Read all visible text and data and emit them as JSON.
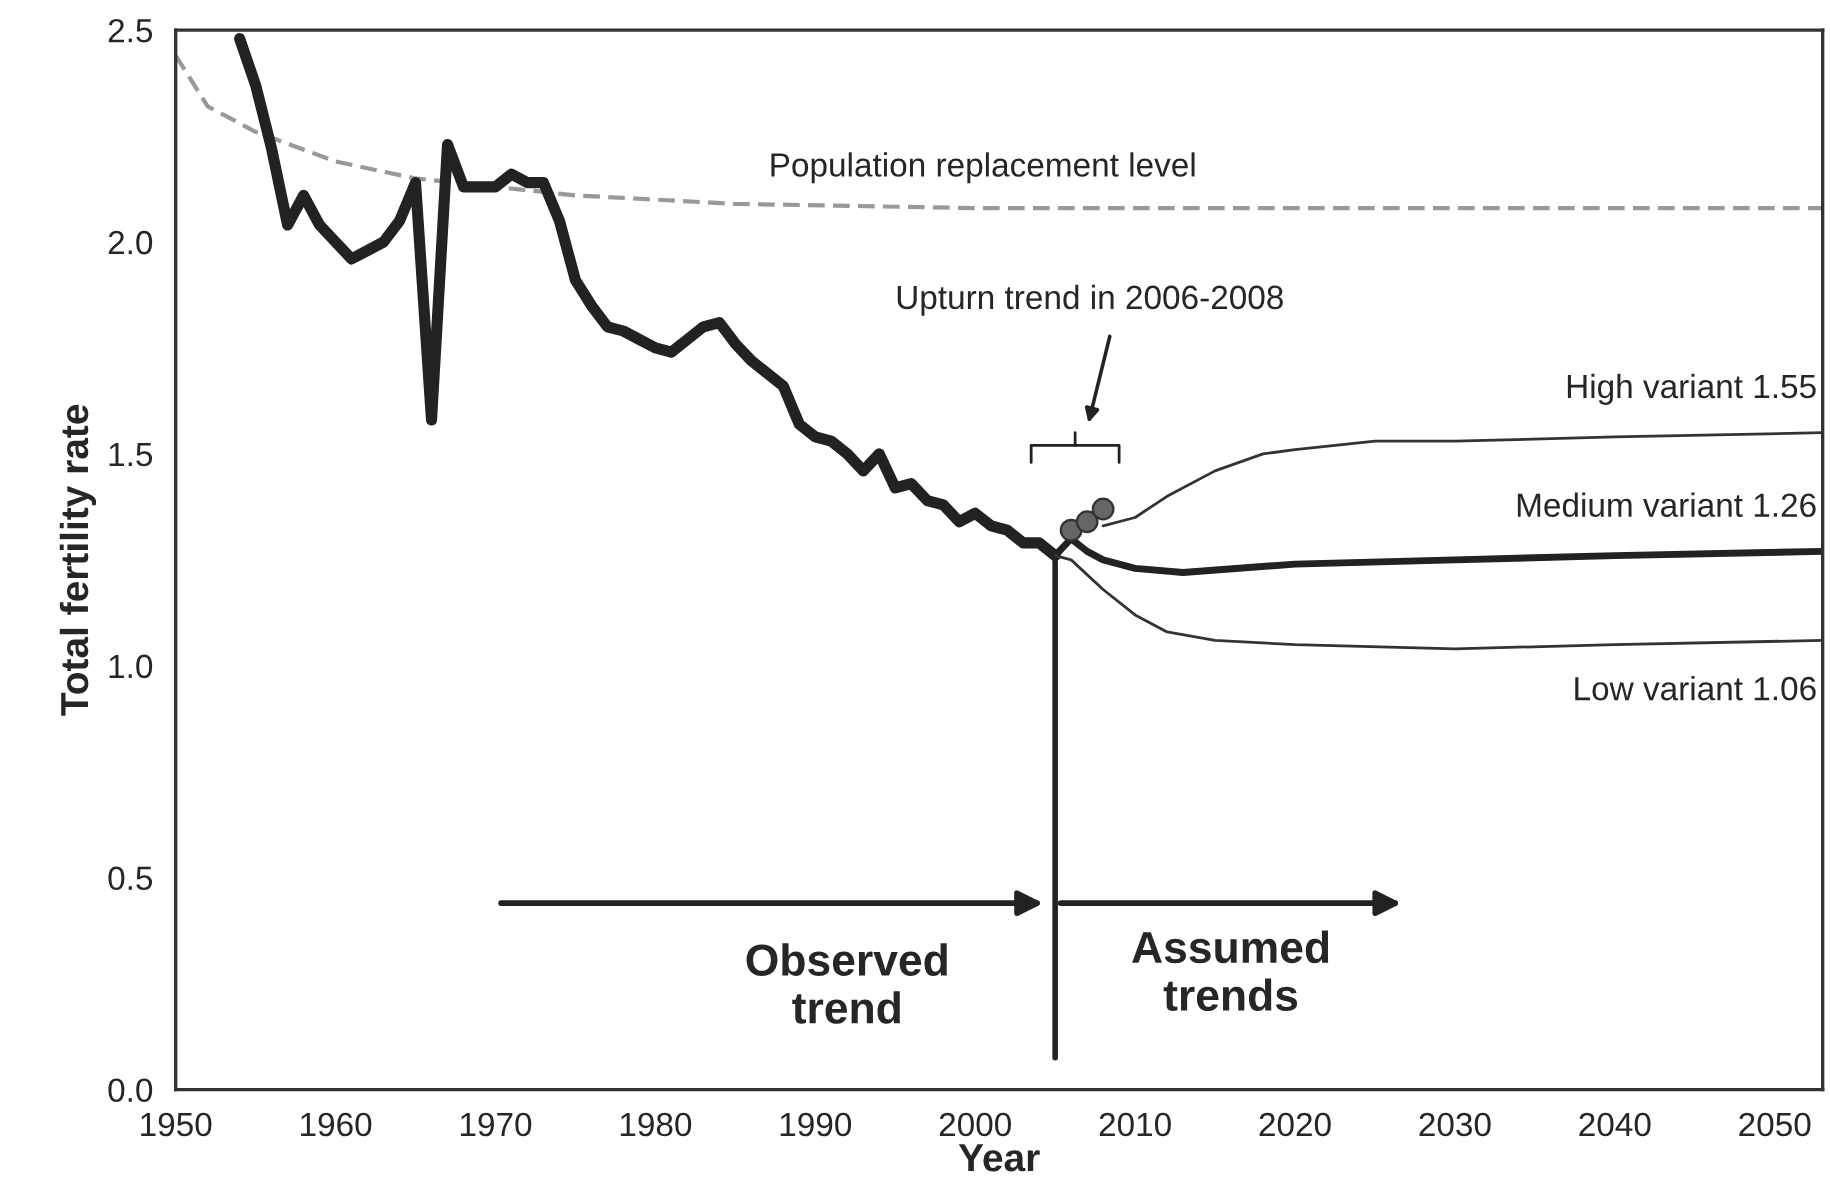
{
  "chart_data": {
    "type": "line",
    "xlabel": "Year",
    "ylabel": "Total fertility rate",
    "xlim": [
      1950,
      2053
    ],
    "ylim": [
      0,
      2.5
    ],
    "xticks": [
      1950,
      1960,
      1970,
      1980,
      1990,
      2000,
      2010,
      2020,
      2030,
      2040,
      2050
    ],
    "yticks": [
      {
        "value": 0,
        "label": "0.0"
      },
      {
        "value": 0.5,
        "label": "0.5"
      },
      {
        "value": 1,
        "label": "1.0"
      },
      {
        "value": 1.5,
        "label": "1.5"
      },
      {
        "value": 2,
        "label": "2.0"
      },
      {
        "value": 2.5,
        "label": "2.5"
      }
    ],
    "grid": false,
    "legend": false,
    "series": [
      {
        "color": "#999999",
        "line_style": "dashed",
        "x": [
          1950,
          1951,
          1952,
          1955,
          1960,
          1965,
          1970,
          1975,
          1980,
          1985,
          2000,
          2053
        ],
        "values": [
          2.44,
          2.38,
          2.32,
          2.26,
          2.19,
          2.15,
          2.13,
          2.11,
          2.1,
          2.09,
          2.08,
          2.08
        ]
      },
      {
        "color": "#222222",
        "line_style": "solid",
        "x": [
          1954,
          1955,
          1956,
          1957,
          1958,
          1959,
          1960,
          1961,
          1962,
          1963,
          1964,
          1965,
          1966,
          1967,
          1968,
          1969,
          1970,
          1971,
          1972,
          1973,
          1974,
          1975,
          1976,
          1977,
          1978,
          1979,
          1980,
          1981,
          1982,
          1983,
          1984,
          1985,
          1986,
          1987,
          1988,
          1989,
          1990,
          1991,
          1992,
          1993,
          1994,
          1995,
          1996,
          1997,
          1998,
          1999,
          2000,
          2001,
          2002,
          2003,
          2004,
          2005
        ],
        "values": [
          2.48,
          2.37,
          2.22,
          2.04,
          2.11,
          2.04,
          2.0,
          1.96,
          1.98,
          2.0,
          2.05,
          2.14,
          1.58,
          2.23,
          2.13,
          2.13,
          2.13,
          2.16,
          2.14,
          2.14,
          2.05,
          1.91,
          1.85,
          1.8,
          1.79,
          1.77,
          1.75,
          1.74,
          1.77,
          1.8,
          1.81,
          1.76,
          1.72,
          1.69,
          1.66,
          1.57,
          1.54,
          1.53,
          1.5,
          1.46,
          1.5,
          1.42,
          1.43,
          1.39,
          1.38,
          1.34,
          1.36,
          1.33,
          1.32,
          1.29,
          1.29,
          1.26
        ]
      },
      {
        "color": "#333333",
        "line_style": "solid",
        "x": [
          2008,
          2010,
          2012,
          2015,
          2018,
          2020,
          2025,
          2030,
          2040,
          2053
        ],
        "values": [
          1.33,
          1.35,
          1.4,
          1.46,
          1.5,
          1.51,
          1.53,
          1.53,
          1.54,
          1.55
        ]
      },
      {
        "color": "#222222",
        "line_style": "solid",
        "x": [
          2005,
          2006,
          2007,
          2008,
          2010,
          2013,
          2020,
          2030,
          2040,
          2053
        ],
        "values": [
          1.26,
          1.3,
          1.27,
          1.25,
          1.23,
          1.22,
          1.24,
          1.25,
          1.26,
          1.27
        ]
      },
      {
        "color": "#333333",
        "line_style": "solid",
        "x": [
          2005,
          2006,
          2008,
          2010,
          2012,
          2015,
          2020,
          2030,
          2040,
          2053
        ],
        "values": [
          1.26,
          1.25,
          1.18,
          1.12,
          1.08,
          1.06,
          1.05,
          1.04,
          1.05,
          1.06
        ]
      },
      {
        "type": "scatter",
        "color": "#666666",
        "marker": "circle",
        "x": [
          2006,
          2007,
          2008
        ],
        "values": [
          1.32,
          1.34,
          1.37
        ]
      }
    ],
    "ref_lines": [
      {
        "axis": "x",
        "value": 2005,
        "color": "#222222"
      }
    ],
    "annotations": [
      "Population replacement level",
      "Upturn trend in 2006-2008",
      "High variant 1.55",
      "Medium variant 1.26",
      "Low variant 1.06",
      "Observed\ntrend",
      "Assumed\ntrends"
    ]
  }
}
